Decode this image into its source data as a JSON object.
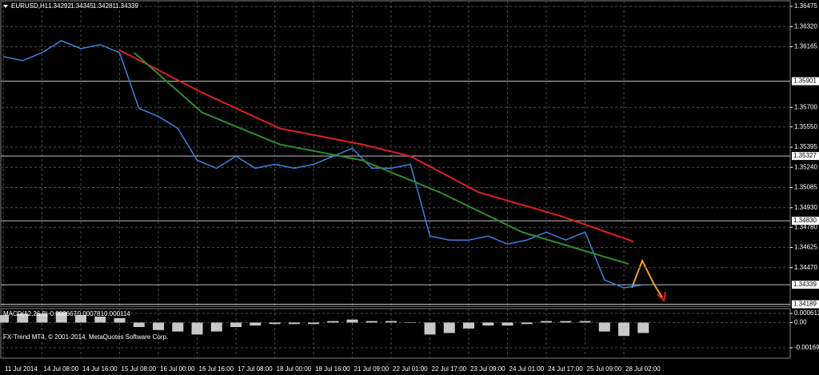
{
  "chart_data": [
    {
      "type": "line",
      "title": "EURUSD,H1",
      "ohlc": [
        1.34292,
        1.34345,
        1.34281,
        1.34339
      ],
      "xlim": [
        -0.5,
        162.3
      ],
      "ylim": [
        1.34174,
        1.36518
      ],
      "grid": true,
      "xticks": [
        {
          "value": 0,
          "label": "11 Jul 2014"
        },
        {
          "value": 8,
          "label": "14 Jul 08:00"
        },
        {
          "value": 16,
          "label": "14 Jul 16:00"
        },
        {
          "value": 24,
          "label": "15 Jul 08:00"
        },
        {
          "value": 32,
          "label": "16 Jul 00:00"
        },
        {
          "value": 40,
          "label": "16 Jul 16:00"
        },
        {
          "value": 48,
          "label": "17 Jul 08:00"
        },
        {
          "value": 56,
          "label": "18 Jul 00:00"
        },
        {
          "value": 64,
          "label": "18 Jul 16:00"
        },
        {
          "value": 72,
          "label": "21 Jul 09:00"
        },
        {
          "value": 80,
          "label": "22 Jul 01:00"
        },
        {
          "value": 88,
          "label": "22 Jul 17:00"
        },
        {
          "value": 96,
          "label": "23 Jul 09:00"
        },
        {
          "value": 104,
          "label": "24 Jul 01:00"
        },
        {
          "value": 112,
          "label": "24 Jul 17:00"
        },
        {
          "value": 120,
          "label": "25 Jul 09:00"
        },
        {
          "value": 128,
          "label": "28 Jul 02:00"
        }
      ],
      "yticks": [
        1.36475,
        {
          "value": 1.3632,
          "label": "1.36320"
        },
        1.36165,
        {
          "value": 1.357,
          "label": "1.35700"
        },
        {
          "value": 1.3555,
          "label": "1.35550"
        },
        1.35395,
        {
          "value": 1.3524,
          "label": "1.35240"
        },
        1.35085,
        {
          "value": 1.3493,
          "label": "1.34930"
        },
        {
          "value": 1.3478,
          "label": "1.34780"
        },
        1.34625,
        {
          "value": 1.3447,
          "label": "1.34470"
        }
      ],
      "levels": [
        {
          "value": 1.35901,
          "label": "1.35901"
        },
        {
          "value": 1.35327,
          "label": "1.35327"
        },
        {
          "value": 1.3483,
          "label": "1.34830"
        },
        {
          "value": 1.34339,
          "label": "1.34339"
        },
        {
          "value": 1.34189,
          "label": "1.34189"
        }
      ],
      "series": [
        {
          "color": "#3c82e0",
          "x": [
            0,
            4,
            8,
            12,
            16,
            20,
            24,
            28,
            32,
            36,
            40,
            44,
            48,
            52,
            56,
            60,
            64,
            68,
            72,
            76,
            80,
            84,
            88,
            92,
            96,
            100,
            104,
            108,
            112,
            116,
            120,
            124,
            128,
            132
          ],
          "values": [
            1.3609,
            1.36059,
            1.3612,
            1.36212,
            1.36151,
            1.36181,
            1.3612,
            1.35692,
            1.35631,
            1.35539,
            1.35294,
            1.35233,
            1.35325,
            1.35233,
            1.35263,
            1.35233,
            1.35263,
            1.35325,
            1.35386,
            1.35233,
            1.35233,
            1.35263,
            1.34713,
            1.34682,
            1.34682,
            1.34713,
            1.34651,
            1.34682,
            1.34743,
            1.34682,
            1.34743,
            1.34376,
            1.34315,
            1.34339
          ]
        },
        {
          "color": "#e0201c",
          "x": [
            24,
            41,
            57,
            74,
            84,
            98,
            115,
            130
          ],
          "values": [
            1.36139,
            1.35814,
            1.35539,
            1.35416,
            1.35325,
            1.35049,
            1.34866,
            1.3467
          ]
        },
        {
          "color": "#2e8b2e",
          "x": [
            27,
            41,
            57,
            74,
            90,
            107,
            129
          ],
          "values": [
            1.3612,
            1.35661,
            1.35416,
            1.35294,
            1.35049,
            1.34743,
            1.34498
          ]
        }
      ]
    },
    {
      "type": "bar",
      "title": "MACD(12,26,9)",
      "readout": [
        -0.000667,
        -0.000781,
        0.000114
      ],
      "color": "#c8c8c8",
      "ylim": [
        -0.00239,
        0.000933
      ],
      "yticks": [
        0.000612,
        {
          "value": 0,
          "label": "0.00"
        },
        -0.00169
      ],
      "x": [
        0,
        4,
        8,
        12,
        16,
        20,
        24,
        28,
        32,
        36,
        40,
        44,
        48,
        52,
        56,
        60,
        64,
        68,
        72,
        76,
        80,
        84,
        88,
        92,
        96,
        100,
        104,
        108,
        112,
        116,
        120,
        124,
        128,
        132
      ],
      "values": [
        0.0005,
        0.0006,
        0.0006,
        0.0007,
        0.0005,
        0.0004,
        0.0003,
        -0.0003,
        -0.0005,
        -0.0006,
        -0.0008,
        -0.0006,
        -0.0003,
        -0.0002,
        -0.0001,
        -0.0001,
        -0.0001,
        0.0001,
        0.0002,
        0.0001,
        0.0001,
        0,
        -0.0008,
        -0.0007,
        -0.0004,
        -0.0002,
        -0.0002,
        -0.0001,
        0.0001,
        0.0001,
        0.0001,
        -0.0006,
        -0.0009,
        -0.0007
      ]
    }
  ],
  "footer": "FX-Trend MT4, © 2001-2014, MetaQuotes Software Corp."
}
